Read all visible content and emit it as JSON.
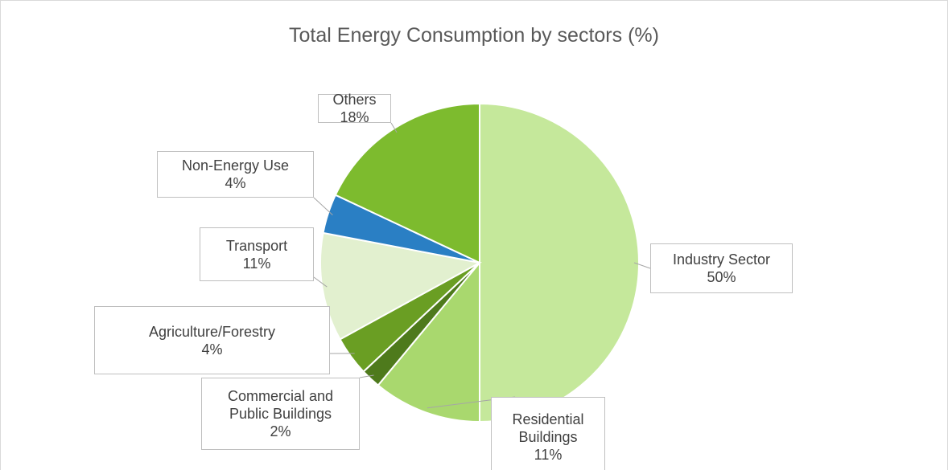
{
  "chart_data": {
    "type": "pie",
    "title": "Total Energy Consumption by sectors (%)",
    "categories": [
      "Industry Sector",
      "Residential Buildings",
      "Commercial and Public Buildings",
      "Agriculture/Forestry",
      "Transport",
      "Non-Energy Use",
      "Others"
    ],
    "values": [
      50,
      11,
      2,
      4,
      11,
      4,
      18
    ],
    "value_labels": [
      "50%",
      "11%",
      "2%",
      "4%",
      "11%",
      "4%",
      "18%"
    ],
    "colors": [
      "#c5e89b",
      "#a9d86e",
      "#4e7a1c",
      "#6a9e23",
      "#e2f0cf",
      "#2a7fc4",
      "#7dbb2e"
    ]
  }
}
